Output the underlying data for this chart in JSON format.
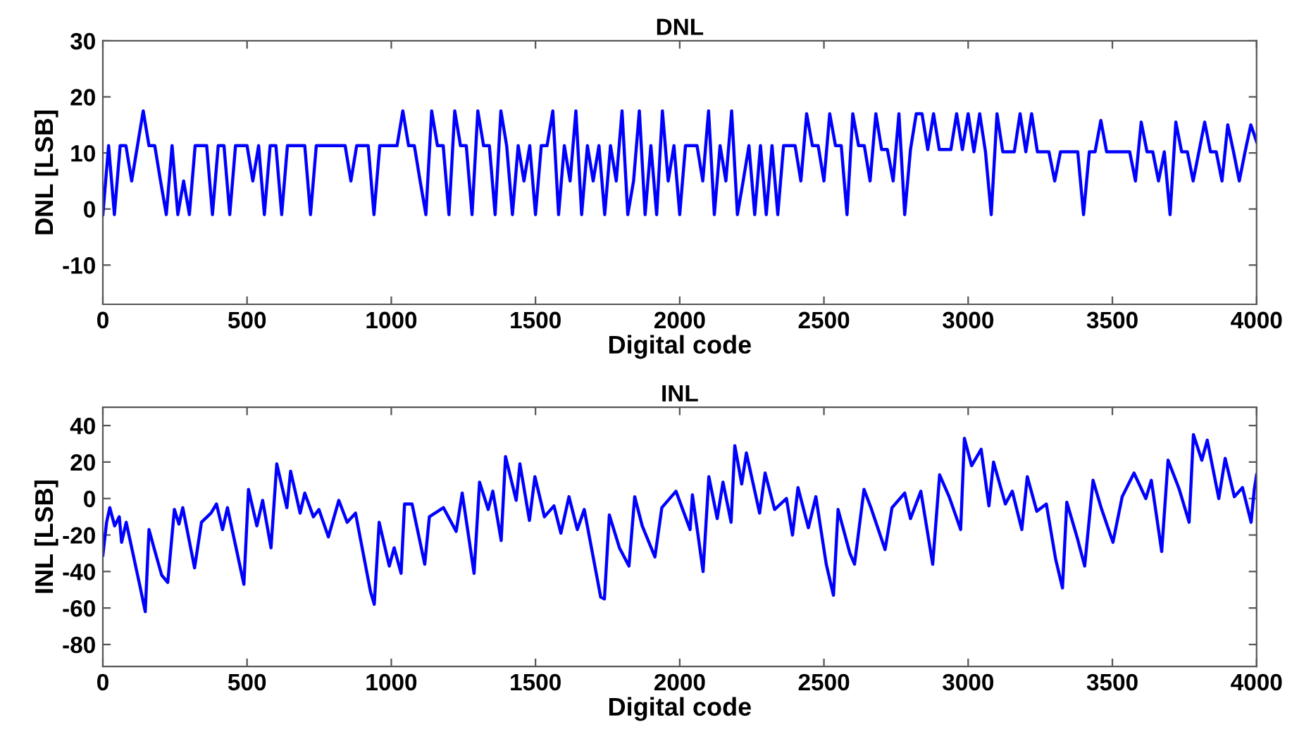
{
  "chart_data": [
    {
      "type": "line",
      "title": "DNL",
      "xlabel": "Digital code",
      "ylabel": "DNL [LSB]",
      "xlim": [
        0,
        4000
      ],
      "ylim": [
        -17,
        30
      ],
      "xticks": [
        0,
        500,
        1000,
        1500,
        2000,
        2500,
        3000,
        3500,
        4000
      ],
      "yticks": [
        -10,
        0,
        10,
        20,
        30
      ],
      "x": [
        0,
        20,
        40,
        60,
        80,
        100,
        120,
        140,
        160,
        180,
        200,
        220,
        240,
        260,
        280,
        300,
        320,
        340,
        360,
        380,
        400,
        420,
        440,
        460,
        480,
        500,
        520,
        540,
        560,
        580,
        600,
        620,
        640,
        660,
        680,
        700,
        720,
        740,
        760,
        780,
        800,
        820,
        840,
        860,
        880,
        900,
        920,
        940,
        960,
        980,
        1000,
        1020,
        1040,
        1060,
        1080,
        1100,
        1120,
        1140,
        1160,
        1180,
        1200,
        1220,
        1240,
        1260,
        1280,
        1300,
        1320,
        1340,
        1360,
        1380,
        1400,
        1420,
        1440,
        1460,
        1480,
        1500,
        1520,
        1540,
        1560,
        1580,
        1600,
        1620,
        1640,
        1660,
        1680,
        1700,
        1720,
        1740,
        1760,
        1780,
        1800,
        1820,
        1840,
        1860,
        1880,
        1900,
        1920,
        1940,
        1960,
        1980,
        2000,
        2020,
        2040,
        2060,
        2080,
        2100,
        2120,
        2140,
        2160,
        2180,
        2200,
        2220,
        2240,
        2260,
        2280,
        2300,
        2320,
        2340,
        2360,
        2380,
        2400,
        2420,
        2440,
        2460,
        2480,
        2500,
        2520,
        2540,
        2560,
        2580,
        2600,
        2620,
        2640,
        2660,
        2680,
        2700,
        2720,
        2740,
        2760,
        2780,
        2800,
        2820,
        2840,
        2860,
        2880,
        2900,
        2920,
        2940,
        2960,
        2980,
        3000,
        3020,
        3040,
        3060,
        3080,
        3100,
        3120,
        3140,
        3160,
        3180,
        3200,
        3220,
        3240,
        3260,
        3280,
        3300,
        3320,
        3340,
        3360,
        3380,
        3400,
        3420,
        3440,
        3460,
        3480,
        3500,
        3520,
        3540,
        3560,
        3580,
        3600,
        3620,
        3640,
        3660,
        3680,
        3700,
        3720,
        3740,
        3760,
        3780,
        3800,
        3820,
        3840,
        3860,
        3880,
        3900,
        3920,
        3940,
        3960,
        3980,
        4000
      ],
      "series": [
        {
          "color": "#0000ff",
          "values": [
            -1,
            11.3,
            -1,
            11.3,
            11.3,
            5,
            11.3,
            17.5,
            11.3,
            11.3,
            5,
            -1,
            11.3,
            -1,
            5,
            -1,
            11.3,
            11.3,
            11.3,
            -1,
            11.3,
            11.3,
            -1,
            11.3,
            11.3,
            11.3,
            5,
            11.3,
            -1,
            11.3,
            11.3,
            -1,
            11.3,
            11.3,
            11.3,
            11.3,
            -1,
            11.3,
            11.3,
            11.3,
            11.3,
            11.3,
            11.3,
            5,
            11.3,
            11.3,
            11.3,
            -1,
            11.3,
            11.3,
            11.3,
            11.3,
            17.5,
            11.3,
            11.3,
            5,
            -1,
            17.5,
            11.3,
            11.3,
            -1,
            17.5,
            11.3,
            11.3,
            -1,
            17.5,
            11.3,
            11.3,
            -1,
            17.5,
            11.3,
            -1,
            11.3,
            5,
            11.3,
            -1,
            11.3,
            11.3,
            17.5,
            -1,
            11.3,
            5,
            17.5,
            -1,
            11.3,
            5,
            11.3,
            -1,
            11.3,
            5,
            17.5,
            -1,
            5,
            17.5,
            -1,
            11.3,
            -1,
            17.5,
            5,
            11.3,
            -1,
            11.3,
            11.3,
            11.3,
            5,
            17.5,
            -1,
            11.3,
            5,
            17.5,
            -1,
            5,
            11.3,
            -1,
            11.3,
            -1,
            11.3,
            -1,
            11.3,
            11.3,
            11.3,
            5,
            17,
            11.3,
            11.3,
            5,
            17,
            11.3,
            11.3,
            -1,
            17,
            11.3,
            11.3,
            5,
            17,
            10.6,
            10.6,
            5,
            17,
            -1,
            10.6,
            17,
            17,
            10.6,
            17,
            10.6,
            10.6,
            10.6,
            17,
            10.6,
            17,
            10.2,
            17,
            10.2,
            -1,
            17,
            10.2,
            10.2,
            10.2,
            17,
            10.2,
            17,
            10.2,
            10.2,
            10.2,
            5,
            10.2,
            10.2,
            10.2,
            10.2,
            -1,
            10.2,
            10.2,
            15.8,
            10.2,
            10.2,
            10.2,
            10.2,
            10.2,
            5,
            15.5,
            10.2,
            10.2,
            5,
            10.2,
            -1,
            15.5,
            10.2,
            10.2,
            5,
            10.2,
            15.5,
            10.2,
            10.2,
            5,
            15,
            10.2,
            5,
            10.2,
            15,
            12
          ]
        }
      ]
    },
    {
      "type": "line",
      "title": "INL",
      "xlabel": "Digital code",
      "ylabel": "INL [LSB]",
      "xlim": [
        0,
        4000
      ],
      "ylim": [
        -92,
        50
      ],
      "xticks": [
        0,
        500,
        1000,
        1500,
        2000,
        2500,
        3000,
        3500,
        4000
      ],
      "yticks": [
        -80,
        -60,
        -40,
        -20,
        0,
        20,
        40
      ],
      "x": [
        0,
        13,
        24,
        41,
        57,
        65,
        81,
        130,
        147,
        160,
        179,
        204,
        225,
        248,
        264,
        277,
        318,
        342,
        375,
        394,
        415,
        432,
        489,
        505,
        534,
        554,
        583,
        603,
        638,
        651,
        684,
        700,
        730,
        749,
        782,
        818,
        847,
        876,
        928,
        941,
        958,
        993,
        1010,
        1034,
        1046,
        1072,
        1116,
        1132,
        1181,
        1225,
        1246,
        1287,
        1306,
        1336,
        1352,
        1381,
        1396,
        1433,
        1446,
        1479,
        1498,
        1531,
        1564,
        1588,
        1616,
        1645,
        1669,
        1726,
        1739,
        1756,
        1791,
        1824,
        1844,
        1870,
        1914,
        1938,
        1987,
        2036,
        2044,
        2081,
        2101,
        2130,
        2150,
        2178,
        2191,
        2215,
        2231,
        2277,
        2296,
        2329,
        2370,
        2391,
        2410,
        2446,
        2472,
        2508,
        2533,
        2549,
        2590,
        2606,
        2639,
        2663,
        2712,
        2736,
        2780,
        2800,
        2836,
        2877,
        2901,
        2934,
        2974,
        2987,
        3012,
        3045,
        3072,
        3088,
        3129,
        3153,
        3186,
        3205,
        3238,
        3271,
        3303,
        3327,
        3342,
        3379,
        3404,
        3433,
        3461,
        3502,
        3534,
        3575,
        3616,
        3635,
        3671,
        3693,
        3732,
        3766,
        3781,
        3810,
        3829,
        3869,
        3891,
        3923,
        3951,
        3981,
        3992,
        4000
      ],
      "series": [
        {
          "color": "#0000ff",
          "values": [
            -31,
            -13,
            -5,
            -15,
            -10,
            -24,
            -13,
            -49,
            -62,
            -17,
            -28,
            -42,
            -46,
            -6,
            -14,
            -5,
            -38,
            -13,
            -8,
            -3,
            -17,
            -5,
            -47,
            5,
            -15,
            -1,
            -27,
            19,
            -5,
            15,
            -8,
            3,
            -10,
            -6,
            -21,
            -1,
            -13,
            -8,
            -51,
            -58,
            -13,
            -37,
            -27,
            -41,
            -3,
            -3,
            -36,
            -10,
            -5,
            -18,
            3,
            -41,
            9,
            -6,
            4,
            -23,
            23,
            -1,
            19,
            -12,
            12,
            -10,
            -4,
            -19,
            1,
            -17,
            -6,
            -54,
            -55,
            -9,
            -27,
            -37,
            1,
            -15,
            -32,
            -5,
            4,
            -17,
            2,
            -40,
            12,
            -11,
            9,
            -13,
            29,
            8,
            25,
            -8,
            14,
            -6,
            0,
            -20,
            6,
            -16,
            1,
            -36,
            -53,
            -6,
            -30,
            -36,
            5,
            -5,
            -28,
            -5,
            3,
            -11,
            4,
            -36,
            13,
            1,
            -17,
            33,
            18,
            27,
            -4,
            20,
            -3,
            4,
            -17,
            12,
            -7,
            -3,
            -33,
            -49,
            -2,
            -22,
            -37,
            10,
            -5,
            -24,
            1,
            14,
            0,
            10,
            -29,
            21,
            5,
            -13,
            35,
            21,
            32,
            0,
            22,
            1,
            6,
            -13,
            5,
            13
          ]
        }
      ]
    }
  ]
}
